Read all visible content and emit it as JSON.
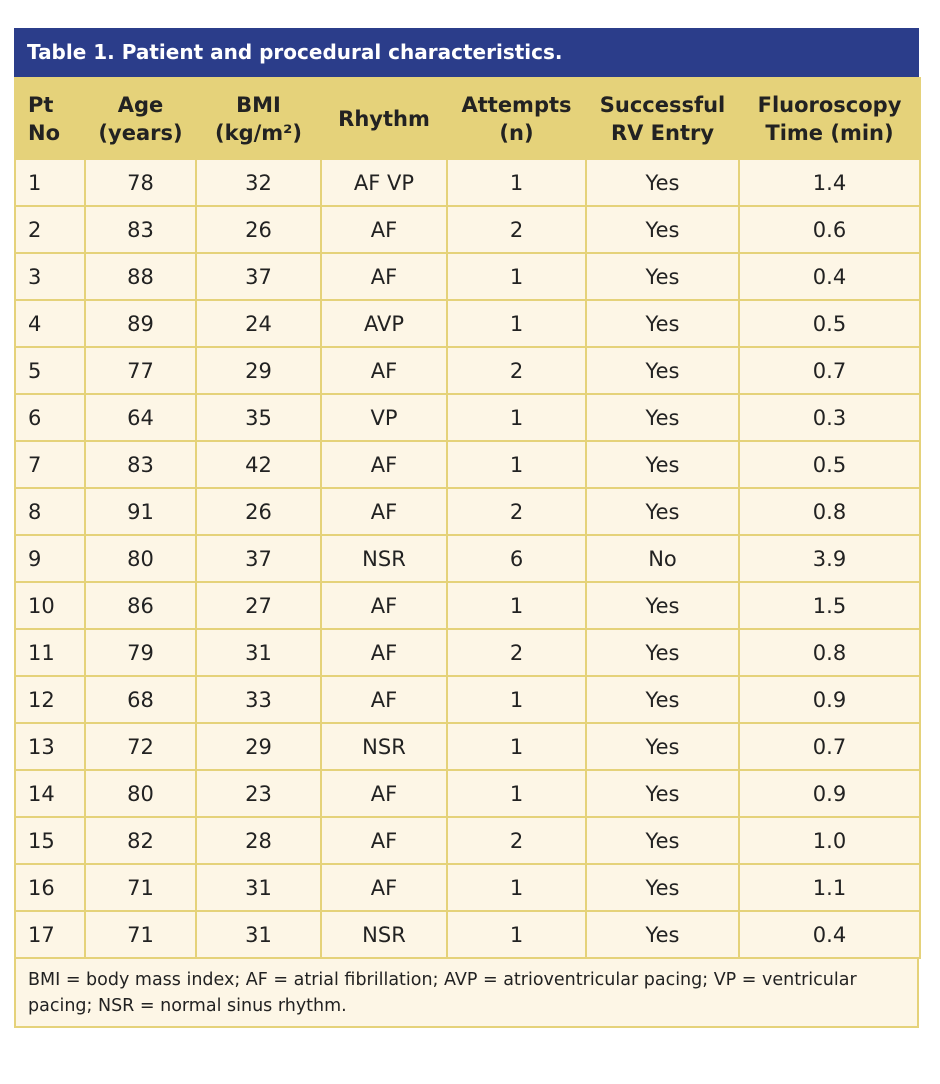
{
  "title": "Table 1. Patient and procedural characteristics.",
  "columns": [
    {
      "line1": "Pt",
      "line2": "No"
    },
    {
      "line1": "Age",
      "line2": "(years)"
    },
    {
      "line1": "BMI",
      "line2": "(kg/m²)"
    },
    {
      "line1": "Rhythm",
      "line2": ""
    },
    {
      "line1": "Attempts",
      "line2": "(n)"
    },
    {
      "line1": "Successful",
      "line2": "RV Entry"
    },
    {
      "line1": "Fluoroscopy",
      "line2": "Time (min)"
    }
  ],
  "rows": [
    [
      "1",
      "78",
      "32",
      "AF VP",
      "1",
      "Yes",
      "1.4"
    ],
    [
      "2",
      "83",
      "26",
      "AF",
      "2",
      "Yes",
      "0.6"
    ],
    [
      "3",
      "88",
      "37",
      "AF",
      "1",
      "Yes",
      "0.4"
    ],
    [
      "4",
      "89",
      "24",
      "AVP",
      "1",
      "Yes",
      "0.5"
    ],
    [
      "5",
      "77",
      "29",
      "AF",
      "2",
      "Yes",
      "0.7"
    ],
    [
      "6",
      "64",
      "35",
      "VP",
      "1",
      "Yes",
      "0.3"
    ],
    [
      "7",
      "83",
      "42",
      "AF",
      "1",
      "Yes",
      "0.5"
    ],
    [
      "8",
      "91",
      "26",
      "AF",
      "2",
      "Yes",
      "0.8"
    ],
    [
      "9",
      "80",
      "37",
      "NSR",
      "6",
      "No",
      "3.9"
    ],
    [
      "10",
      "86",
      "27",
      "AF",
      "1",
      "Yes",
      "1.5"
    ],
    [
      "11",
      "79",
      "31",
      "AF",
      "2",
      "Yes",
      "0.8"
    ],
    [
      "12",
      "68",
      "33",
      "AF",
      "1",
      "Yes",
      "0.9"
    ],
    [
      "13",
      "72",
      "29",
      "NSR",
      "1",
      "Yes",
      "0.7"
    ],
    [
      "14",
      "80",
      "23",
      "AF",
      "1",
      "Yes",
      "0.9"
    ],
    [
      "15",
      "82",
      "28",
      "AF",
      "2",
      "Yes",
      "1.0"
    ],
    [
      "16",
      "71",
      "31",
      "AF",
      "1",
      "Yes",
      "1.1"
    ],
    [
      "17",
      "71",
      "31",
      "NSR",
      "1",
      "Yes",
      "0.4"
    ]
  ],
  "footnote": "BMI = body mass index; AF = atrial fibrillation; AVP = atrioventricular pacing; VP = ventricular pacing; NSR = normal sinus rhythm.",
  "colors": {
    "title_bg": "#2b3d8a",
    "header_bg": "#e5d27a",
    "body_bg": "#fdf6e6"
  }
}
